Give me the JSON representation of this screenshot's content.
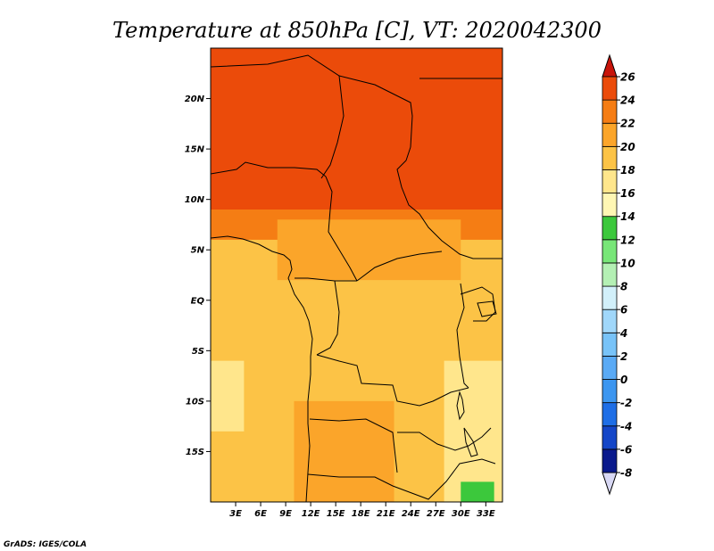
{
  "chart_data": {
    "type": "heatmap",
    "title": "Temperature at 850hPa [C], VT: 2020042300",
    "variable_units": "C",
    "x_ticks": [
      {
        "value": 3,
        "label": "3E"
      },
      {
        "value": 6,
        "label": "6E"
      },
      {
        "value": 9,
        "label": "9E"
      },
      {
        "value": 12,
        "label": "12E"
      },
      {
        "value": 15,
        "label": "15E"
      },
      {
        "value": 18,
        "label": "18E"
      },
      {
        "value": 21,
        "label": "21E"
      },
      {
        "value": 24,
        "label": "24E"
      },
      {
        "value": 27,
        "label": "27E"
      },
      {
        "value": 30,
        "label": "30E"
      },
      {
        "value": 33,
        "label": "33E"
      }
    ],
    "y_ticks": [
      {
        "value": 20,
        "label": "20N"
      },
      {
        "value": 15,
        "label": "15N"
      },
      {
        "value": 10,
        "label": "10N"
      },
      {
        "value": 5,
        "label": "5N"
      },
      {
        "value": 0,
        "label": "EQ"
      },
      {
        "value": -5,
        "label": "5S"
      },
      {
        "value": -10,
        "label": "10S"
      },
      {
        "value": -15,
        "label": "15S"
      }
    ],
    "xlim": [
      0,
      35
    ],
    "ylim": [
      -20,
      25
    ],
    "colorbar": {
      "levels": [
        -8,
        -6,
        -4,
        -2,
        0,
        2,
        4,
        6,
        8,
        10,
        12,
        14,
        16,
        18,
        20,
        22,
        24,
        26
      ],
      "labels": [
        "26",
        "24",
        "22",
        "20",
        "18",
        "16",
        "14",
        "12",
        "10",
        "8",
        "6",
        "4",
        "2",
        "0",
        "-2",
        "-4",
        "-6",
        "-8"
      ],
      "colors": [
        "#0a1a8c",
        "#1446c8",
        "#1e6ee6",
        "#3c96f0",
        "#5aaaf5",
        "#78c3f8",
        "#a0d7fa",
        "#d2f0fa",
        "#b4f0b4",
        "#78e678",
        "#3cc83c",
        "#fff7b4",
        "#ffe68c",
        "#fcc346",
        "#fba52a",
        "#f57d14",
        "#eb4b0a",
        "#d21e0a"
      ],
      "under_color": "#d8d8f4",
      "over_color": "#c8140a"
    },
    "regions": [
      {
        "lon": [
          0,
          35
        ],
        "lat": [
          -20,
          25
        ],
        "value": 19
      },
      {
        "lon": [
          0,
          35
        ],
        "lat": [
          6,
          25
        ],
        "value": 23
      },
      {
        "lon": [
          0,
          35
        ],
        "lat": [
          9,
          25
        ],
        "value": 25
      },
      {
        "lon": [
          28,
          35
        ],
        "lat": [
          -20,
          -6
        ],
        "value": 17
      },
      {
        "lon": [
          0,
          4
        ],
        "lat": [
          -13,
          -6
        ],
        "value": 17
      },
      {
        "lon": [
          30,
          34
        ],
        "lat": [
          -20,
          -18
        ],
        "value": 13
      },
      {
        "lon": [
          10,
          22
        ],
        "lat": [
          -20,
          -10
        ],
        "value": 21
      },
      {
        "lon": [
          8,
          30
        ],
        "lat": [
          2,
          8
        ],
        "value": 21
      }
    ]
  },
  "footer": {
    "credit": "GrADS: IGES/COLA"
  }
}
